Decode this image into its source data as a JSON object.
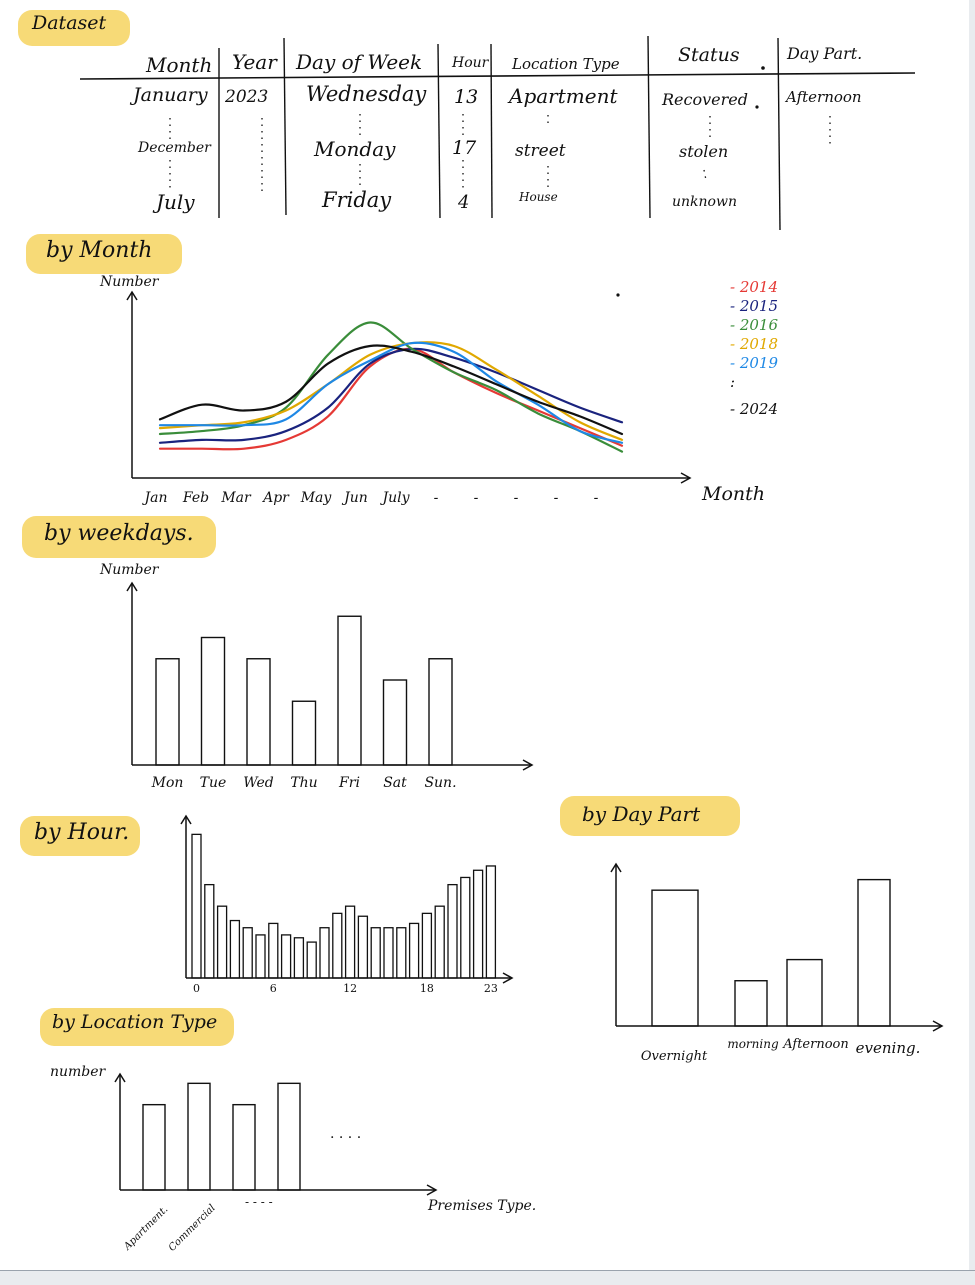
{
  "dataset": {
    "title": "Dataset",
    "columns": [
      "Month",
      "Year",
      "Day of Week",
      "Hour",
      "Location Type",
      "Status",
      "Day Part."
    ],
    "rows": [
      [
        "January",
        "2023",
        "Wednesday",
        "13",
        "Apartment",
        "Recovered",
        "Afternoon"
      ],
      [
        "December",
        "",
        "Monday",
        "17",
        "street",
        "stolen",
        ""
      ],
      [
        "July",
        "",
        "Friday",
        "4",
        "House",
        "unknown",
        ""
      ]
    ]
  },
  "sections": {
    "month": "by Month",
    "weekdays": "by weekdays.",
    "hour": "by Hour.",
    "daypart": "by Day Part",
    "location": "by Location Type"
  },
  "chart_data": [
    {
      "type": "line",
      "title": "by Month",
      "ylabel": "Number",
      "xlabel": "Month",
      "categories": [
        "Jan",
        "Feb",
        "Mar",
        "Apr",
        "May",
        "Jun",
        "July",
        "...",
        "...",
        "...",
        "...",
        "..."
      ],
      "series": [
        {
          "name": "2014",
          "color": "#e53935",
          "values": [
            1.0,
            1.0,
            1.0,
            1.3,
            2.1,
            3.8,
            4.4,
            3.6,
            2.9,
            2.3,
            1.7,
            1.1
          ]
        },
        {
          "name": "2015",
          "color": "#1a237e",
          "values": [
            1.2,
            1.3,
            1.3,
            1.6,
            2.4,
            3.9,
            4.4,
            4.1,
            3.6,
            3.0,
            2.4,
            1.9
          ]
        },
        {
          "name": "2016",
          "color": "#3a8d3a",
          "values": [
            1.5,
            1.6,
            1.8,
            2.4,
            4.2,
            5.3,
            4.4,
            3.6,
            3.0,
            2.2,
            1.6,
            0.9
          ]
        },
        {
          "name": "2018",
          "color": "#e0a800",
          "values": [
            1.7,
            1.8,
            1.9,
            2.3,
            3.2,
            4.2,
            4.6,
            4.5,
            3.7,
            2.8,
            1.9,
            1.3
          ]
        },
        {
          "name": "2019",
          "color": "#1e88e5",
          "values": [
            1.8,
            1.8,
            1.8,
            2.0,
            3.2,
            4.0,
            4.6,
            4.3,
            3.3,
            2.5,
            1.6,
            1.2
          ]
        },
        {
          "name": "2024",
          "color": "#111111",
          "values": [
            2.0,
            2.5,
            2.3,
            2.6,
            3.9,
            4.5,
            4.3,
            3.8,
            3.2,
            2.6,
            2.1,
            1.5
          ]
        }
      ],
      "legend": [
        "- 2014",
        "- 2015",
        "- 2016",
        "- 2018",
        "- 2019",
        ":",
        "- 2024"
      ],
      "ylim": [
        0,
        6
      ]
    },
    {
      "type": "bar",
      "title": "by weekdays.",
      "ylabel": "Number",
      "categories": [
        "Mon",
        "Tue",
        "Wed",
        "Thu",
        "Fri",
        "Sat",
        "Sun."
      ],
      "values": [
        5,
        6,
        5,
        3,
        7,
        4,
        5
      ],
      "ylim": [
        0,
        8
      ]
    },
    {
      "type": "bar",
      "title": "by Hour.",
      "categories": [
        "0",
        "",
        "",
        "",
        "",
        "",
        "6",
        "",
        "",
        "",
        "",
        "",
        "12",
        "",
        "",
        "",
        "",
        "",
        "18",
        "",
        "",
        "",
        "",
        "23"
      ],
      "values": [
        10,
        6.5,
        5,
        4,
        3.5,
        3,
        3.8,
        3,
        2.8,
        2.5,
        3.5,
        4.5,
        5,
        4.3,
        3.5,
        3.5,
        3.5,
        3.8,
        4.5,
        5,
        6.5,
        7,
        7.5,
        7.8
      ],
      "ylim": [
        0,
        11
      ]
    },
    {
      "type": "bar",
      "title": "by Day Part",
      "categories": [
        "Overnight",
        "morning",
        "Afternoon",
        "evening."
      ],
      "values": [
        9,
        3,
        4.4,
        9.7
      ],
      "ylim": [
        0,
        11
      ]
    },
    {
      "type": "bar",
      "title": "by Location Type",
      "ylabel": "number",
      "xlabel": "Premises Type.",
      "categories": [
        "Apartment.",
        "Commercial",
        "",
        ""
      ],
      "values": [
        4,
        5,
        4,
        5
      ],
      "ylim": [
        0,
        6
      ]
    }
  ],
  "annotations": {
    "month_trailing_ticks": "- - - - - -",
    "location_ellipsis": ". . . .",
    "location_dashes": "- - - -",
    "legend_dots": ":"
  }
}
